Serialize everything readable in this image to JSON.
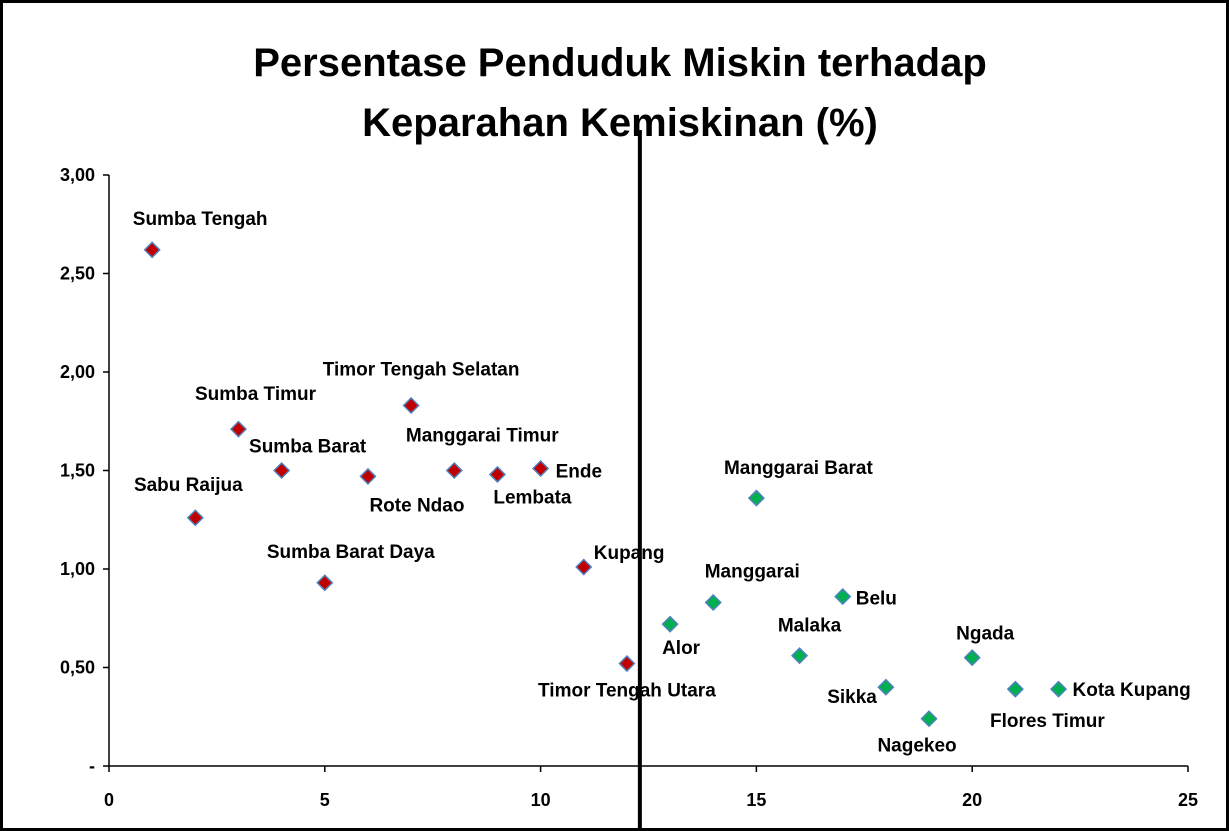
{
  "chart_data": {
    "type": "scatter",
    "title": [
      "Persentase Penduduk Miskin terhadap",
      "Keparahan Kemiskinan (%)"
    ],
    "series": [
      {
        "color": "#c00000",
        "x": [
          1,
          2,
          3,
          4,
          5,
          6,
          7,
          8,
          9,
          10,
          11,
          12
        ],
        "values": [
          2.62,
          1.26,
          1.71,
          1.5,
          0.93,
          1.47,
          1.83,
          1.5,
          1.48,
          1.51,
          1.01,
          0.52
        ],
        "labels": [
          "Sumba Tengah",
          "Sabu Raijua",
          "Sumba Timur",
          "Sumba Barat",
          "Sumba Barat Daya",
          "Rote Ndao",
          "Timor Tengah Selatan",
          "Manggarai Timur",
          "Lembata",
          "Ende",
          "Kupang",
          "Timor Tengah Utara"
        ]
      },
      {
        "color": "#00b050",
        "x": [
          13,
          14,
          15,
          16,
          17,
          18,
          19,
          20,
          21,
          22
        ],
        "values": [
          0.72,
          0.83,
          1.36,
          0.56,
          0.86,
          0.4,
          0.24,
          0.55,
          0.39,
          0.39
        ],
        "labels": [
          "Alor",
          "Manggarai",
          "Manggarai Barat",
          "Malaka",
          "Belu",
          "Sikka",
          "Nagekeo",
          "Ngada",
          "Flores Timur",
          "Kota Kupang"
        ]
      }
    ],
    "reference_line_x": 12.3,
    "xlim": [
      0,
      25
    ],
    "xticks": [
      0,
      5,
      10,
      15,
      20,
      25
    ],
    "ylim": [
      0,
      3
    ],
    "yticks": [
      {
        "value": 0,
        "label": "-"
      },
      {
        "value": 0.5,
        "label": "0,50"
      },
      {
        "value": 1,
        "label": "1,00"
      },
      {
        "value": 1.5,
        "label": "1,50"
      },
      {
        "value": 2,
        "label": "2,00"
      },
      {
        "value": 2.5,
        "label": "2,50"
      },
      {
        "value": 3,
        "label": "3,00"
      }
    ],
    "grid": false
  }
}
